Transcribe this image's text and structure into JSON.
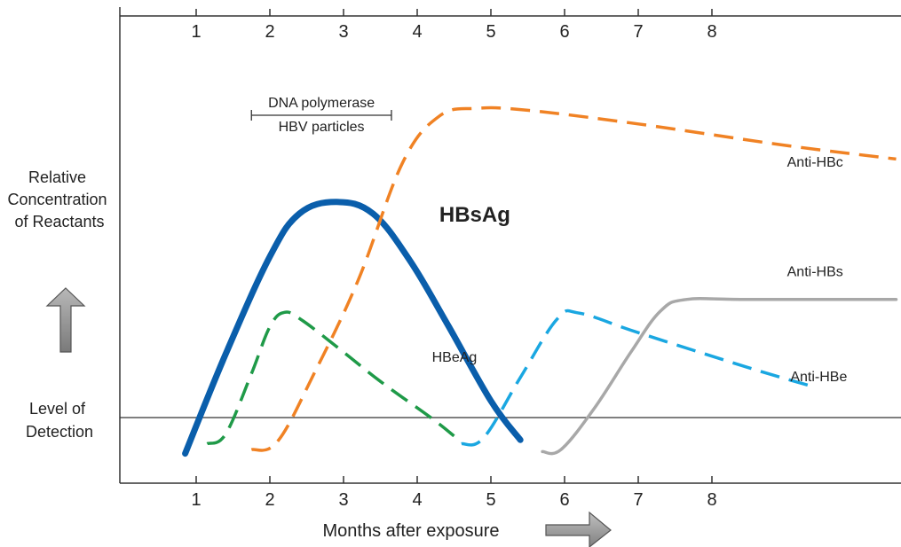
{
  "chart_data": {
    "type": "line",
    "xlabel": "Months after  exposure",
    "ylabel_lines": [
      "Relative",
      "Concentration",
      "of Reactants"
    ],
    "detection_label_lines": [
      "Level of",
      "Detection"
    ],
    "x_ticks": [
      1,
      2,
      3,
      4,
      5,
      6,
      7,
      8
    ],
    "xlim": [
      0,
      10.5
    ],
    "ylim": [
      0,
      10
    ],
    "detection_level": 1,
    "annotation": {
      "lines": [
        "DNA polymerase",
        "HBV particles"
      ],
      "x_range": [
        1.75,
        3.65
      ]
    },
    "series": [
      {
        "name": "HBsAg",
        "color": "#0a5eab",
        "style": "solid",
        "width": 7,
        "label_at": [
          4.3,
          6.3
        ],
        "points": [
          [
            0.85,
            0.35
          ],
          [
            1.4,
            2.9
          ],
          [
            2.0,
            5.4
          ],
          [
            2.4,
            6.5
          ],
          [
            2.9,
            6.8
          ],
          [
            3.4,
            6.5
          ],
          [
            3.9,
            5.3
          ],
          [
            4.4,
            3.7
          ],
          [
            5.0,
            1.7
          ],
          [
            5.4,
            0.7
          ]
        ]
      },
      {
        "name": "HBeAg",
        "color": "#1f9a48",
        "style": "dashed",
        "width": 3.5,
        "label_at": [
          4.2,
          2.7
        ],
        "points": [
          [
            1.15,
            0.6
          ],
          [
            1.4,
            0.85
          ],
          [
            1.75,
            2.4
          ],
          [
            2.0,
            3.6
          ],
          [
            2.2,
            3.97
          ],
          [
            2.45,
            3.75
          ],
          [
            3.0,
            2.95
          ],
          [
            3.5,
            2.2
          ],
          [
            4.2,
            1.25
          ],
          [
            4.5,
            0.8
          ]
        ]
      },
      {
        "name": "Anti-HBc",
        "color": "#f08224",
        "style": "dashed",
        "width": 3.5,
        "label_at": [
          9.4,
          7.7
        ],
        "points": [
          [
            1.75,
            0.45
          ],
          [
            2.1,
            0.65
          ],
          [
            2.6,
            2.4
          ],
          [
            3.2,
            4.8
          ],
          [
            3.8,
            7.8
          ],
          [
            4.3,
            9.0
          ],
          [
            4.8,
            9.2
          ],
          [
            5.5,
            9.15
          ],
          [
            7.0,
            8.8
          ],
          [
            9.0,
            8.25
          ],
          [
            10.5,
            7.9
          ]
        ]
      },
      {
        "name": "Anti-HBe",
        "color": "#1aa7e1",
        "style": "dashed",
        "width": 3.5,
        "label_at": [
          9.45,
          2.2
        ],
        "points": [
          [
            4.6,
            0.6
          ],
          [
            4.9,
            0.75
          ],
          [
            5.4,
            2.3
          ],
          [
            5.9,
            3.8
          ],
          [
            6.2,
            3.95
          ],
          [
            7.0,
            3.45
          ],
          [
            8.5,
            2.55
          ],
          [
            9.4,
            2.05
          ]
        ]
      },
      {
        "name": "Anti-HBs",
        "color": "#a8a8a8",
        "style": "solid",
        "width": 3.5,
        "label_at": [
          9.4,
          4.9
        ],
        "points": [
          [
            5.7,
            0.4
          ],
          [
            5.95,
            0.45
          ],
          [
            6.4,
            1.5
          ],
          [
            6.9,
            2.95
          ],
          [
            7.3,
            4.0
          ],
          [
            7.65,
            4.3
          ],
          [
            8.5,
            4.3
          ],
          [
            10.5,
            4.3
          ]
        ]
      }
    ]
  }
}
